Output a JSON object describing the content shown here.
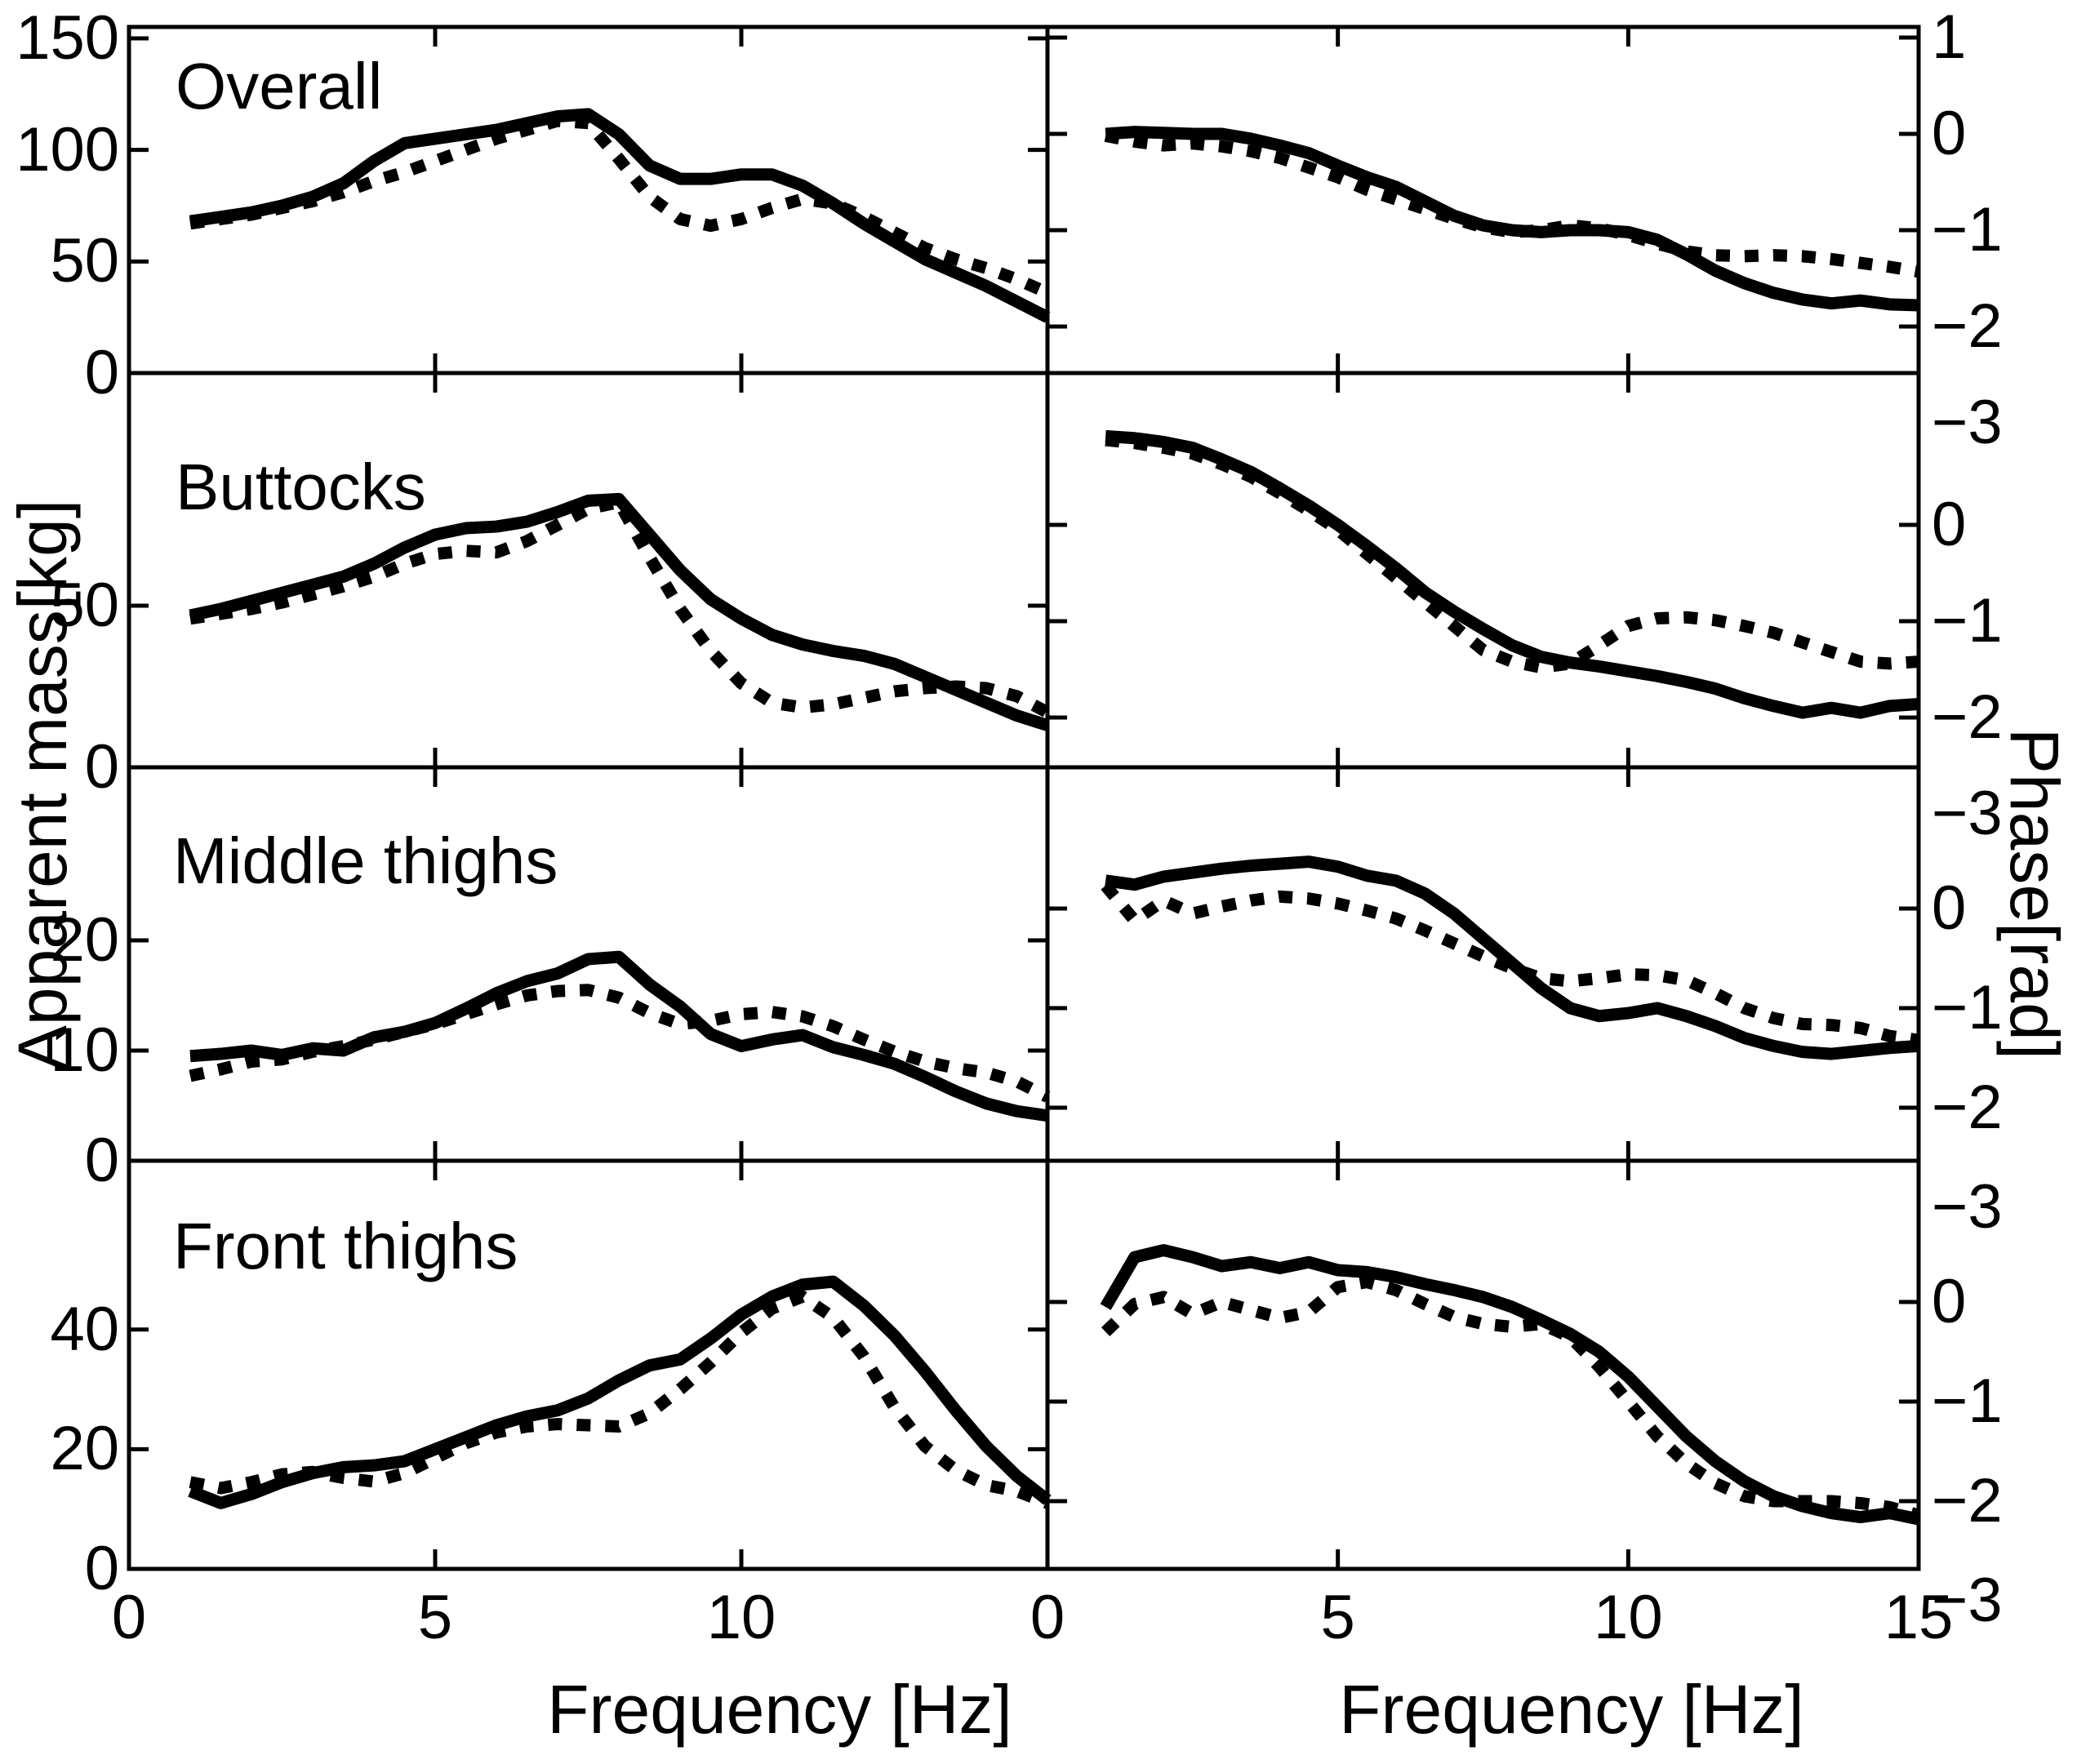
{
  "figure": {
    "left_axis_title": "Apparent mass[kg]",
    "right_axis_title": "Phase[rad]",
    "bottom_axis_title_left": "Frequency [Hz]",
    "bottom_axis_title_right": "Frequency [Hz]",
    "row_titles": [
      "Overall",
      "Buttocks",
      "Middle thighs",
      "Front thighs"
    ],
    "line_color": "#000000",
    "background_color": "#ffffff"
  },
  "chart_data": [
    {
      "key": "overall-am",
      "type": "line",
      "title": "Overall",
      "xlabel": "Frequency [Hz]",
      "ylabel": "Apparent mass[kg]",
      "xlim": [
        0,
        15
      ],
      "ylim": [
        0,
        155.1
      ],
      "x_ticks": [
        5,
        10
      ],
      "x_axis_labels": [
        0,
        5,
        10
      ],
      "y_ticks": [
        0,
        50,
        100,
        150
      ],
      "x": [
        1,
        1.5,
        2,
        2.5,
        3,
        3.5,
        4,
        4.5,
        5,
        5.5,
        6,
        6.5,
        7,
        7.5,
        8,
        8.5,
        9,
        9.5,
        10,
        10.5,
        11,
        11.5,
        12,
        12.5,
        13,
        13.5,
        14,
        14.5,
        15
      ],
      "series": [
        {
          "name": "solid",
          "style": "solid",
          "values": [
            68,
            70,
            72,
            75,
            79,
            85,
            95,
            103,
            105,
            107,
            109,
            112,
            115,
            116,
            107,
            93,
            87,
            87,
            89,
            89,
            84,
            76,
            67,
            59,
            51,
            45,
            39,
            32,
            25
          ]
        },
        {
          "name": "dotted",
          "style": "dotted",
          "values": [
            67,
            69,
            71,
            74,
            77,
            81,
            86,
            90,
            95,
            100,
            105,
            109,
            113,
            112,
            96,
            79,
            69,
            66,
            69,
            74,
            78,
            76,
            70,
            63,
            56,
            51,
            47,
            42,
            36
          ]
        }
      ]
    },
    {
      "key": "overall-phase",
      "type": "line",
      "title": "",
      "xlabel": "Frequency [Hz]",
      "ylabel": "Phase[rad]",
      "xlim": [
        0,
        15
      ],
      "ylim": [
        -2.483,
        1.11
      ],
      "x_ticks": [
        5,
        10
      ],
      "x_axis_labels": [
        0,
        5,
        10,
        15
      ],
      "y_ticks": [
        1,
        0,
        -1,
        -2,
        -3
      ],
      "x": [
        1,
        1.5,
        2,
        2.5,
        3,
        3.5,
        4,
        4.5,
        5,
        5.5,
        6,
        6.5,
        7,
        7.5,
        8,
        8.5,
        9,
        9.5,
        10,
        10.5,
        11,
        11.5,
        12,
        12.5,
        13,
        13.5,
        14,
        14.5,
        15
      ],
      "series": [
        {
          "name": "solid",
          "style": "solid",
          "values": [
            0.0,
            0.02,
            0.01,
            0.0,
            0.0,
            -0.05,
            -0.12,
            -0.2,
            -0.33,
            -0.45,
            -0.55,
            -0.7,
            -0.85,
            -0.95,
            -1.0,
            -1.02,
            -1.0,
            -1.0,
            -1.02,
            -1.1,
            -1.25,
            -1.42,
            -1.55,
            -1.65,
            -1.72,
            -1.76,
            -1.73,
            -1.77,
            -1.78
          ]
        },
        {
          "name": "dotted",
          "style": "dotted",
          "values": [
            -0.02,
            -0.08,
            -0.12,
            -0.1,
            -0.13,
            -0.18,
            -0.25,
            -0.35,
            -0.45,
            -0.58,
            -0.68,
            -0.78,
            -0.88,
            -0.97,
            -1.02,
            -1.0,
            -0.95,
            -0.98,
            -1.05,
            -1.14,
            -1.22,
            -1.26,
            -1.27,
            -1.26,
            -1.27,
            -1.3,
            -1.34,
            -1.38,
            -1.43
          ]
        }
      ]
    },
    {
      "key": "buttocks-am",
      "type": "line",
      "title": "Buttocks",
      "xlabel": "Frequency [Hz]",
      "ylabel": "Apparent mass[kg]",
      "xlim": [
        0,
        15
      ],
      "ylim": [
        0,
        122
      ],
      "x_ticks": [
        5,
        10
      ],
      "x_axis_labels": [
        0,
        5,
        10
      ],
      "y_ticks": [
        0,
        50
      ],
      "x": [
        1,
        1.5,
        2,
        2.5,
        3,
        3.5,
        4,
        4.5,
        5,
        5.5,
        6,
        6.5,
        7,
        7.5,
        8,
        8.5,
        9,
        9.5,
        10,
        10.5,
        11,
        11.5,
        12,
        12.5,
        13,
        13.5,
        14,
        14.5,
        15
      ],
      "series": [
        {
          "name": "solid",
          "style": "solid",
          "values": [
            47,
            49,
            51.5,
            54,
            56.5,
            59,
            63,
            68,
            72,
            74,
            74.5,
            76,
            79,
            82.5,
            83,
            72,
            61,
            52,
            46,
            41,
            38,
            36,
            34.5,
            32,
            28,
            24,
            20,
            16,
            13
          ]
        },
        {
          "name": "dotted",
          "style": "dotted",
          "values": [
            46,
            47.5,
            49,
            51,
            53.5,
            56,
            59,
            63,
            66,
            67,
            66.5,
            70,
            75,
            80,
            82,
            65,
            49,
            36,
            26,
            20,
            18.5,
            19.5,
            21.5,
            23.5,
            24.5,
            25,
            24.5,
            22,
            17
          ]
        }
      ]
    },
    {
      "key": "buttocks-phase",
      "type": "line",
      "title": "",
      "xlabel": "Frequency [Hz]",
      "ylabel": "Phase[rad]",
      "xlim": [
        0,
        15
      ],
      "ylim": [
        -2.517,
        1.576
      ],
      "x_ticks": [
        5,
        10
      ],
      "x_axis_labels": [
        0,
        5,
        10,
        15
      ],
      "y_ticks": [
        0,
        -1,
        -2,
        -3
      ],
      "x": [
        1,
        1.5,
        2,
        2.5,
        3,
        3.5,
        4,
        4.5,
        5,
        5.5,
        6,
        6.5,
        7,
        7.5,
        8,
        8.5,
        9,
        9.5,
        10,
        10.5,
        11,
        11.5,
        12,
        12.5,
        13,
        13.5,
        14,
        14.5,
        15
      ],
      "series": [
        {
          "name": "solid",
          "style": "solid",
          "values": [
            0.92,
            0.9,
            0.86,
            0.8,
            0.68,
            0.55,
            0.38,
            0.2,
            0.0,
            -0.22,
            -0.45,
            -0.7,
            -0.9,
            -1.08,
            -1.25,
            -1.37,
            -1.43,
            -1.47,
            -1.52,
            -1.57,
            -1.63,
            -1.7,
            -1.8,
            -1.88,
            -1.95,
            -1.9,
            -1.95,
            -1.88,
            -1.86
          ]
        },
        {
          "name": "dotted",
          "style": "dotted",
          "values": [
            0.88,
            0.85,
            0.8,
            0.74,
            0.63,
            0.5,
            0.33,
            0.15,
            -0.05,
            -0.3,
            -0.55,
            -0.8,
            -1.05,
            -1.3,
            -1.42,
            -1.48,
            -1.44,
            -1.25,
            -1.05,
            -0.97,
            -0.96,
            -0.99,
            -1.05,
            -1.12,
            -1.22,
            -1.32,
            -1.42,
            -1.44,
            -1.42
          ]
        }
      ]
    },
    {
      "key": "middle-thighs-am",
      "type": "line",
      "title": "Middle thighs",
      "xlabel": "Frequency [Hz]",
      "ylabel": "Apparent mass[kg]",
      "xlim": [
        0,
        15
      ],
      "ylim": [
        0,
        35.7
      ],
      "x_ticks": [
        5,
        10
      ],
      "x_axis_labels": [
        0,
        5,
        10
      ],
      "y_ticks": [
        0,
        10,
        20
      ],
      "x": [
        1,
        1.5,
        2,
        2.5,
        3,
        3.5,
        4,
        4.5,
        5,
        5.5,
        6,
        6.5,
        7,
        7.5,
        8,
        8.5,
        9,
        9.5,
        10,
        10.5,
        11,
        11.5,
        12,
        12.5,
        13,
        13.5,
        14,
        14.5,
        15
      ],
      "series": [
        {
          "name": "solid",
          "style": "solid",
          "values": [
            9.5,
            9.7,
            10.0,
            9.6,
            10.2,
            10.0,
            11.2,
            11.7,
            12.5,
            13.8,
            15.2,
            16.3,
            17.0,
            18.3,
            18.5,
            16.0,
            14.0,
            11.5,
            10.4,
            11.0,
            11.4,
            10.3,
            9.6,
            8.8,
            7.6,
            6.3,
            5.2,
            4.5,
            4.1
          ]
        },
        {
          "name": "dotted",
          "style": "dotted",
          "values": [
            7.7,
            8.3,
            9.0,
            9.2,
            9.9,
            10.4,
            11.0,
            11.7,
            12.4,
            13.3,
            14.2,
            15.0,
            15.4,
            15.5,
            14.8,
            13.4,
            12.4,
            12.7,
            13.3,
            13.5,
            13.1,
            12.2,
            11.0,
            9.9,
            9.0,
            8.4,
            8.0,
            7.2,
            5.8
          ]
        }
      ]
    },
    {
      "key": "middle-thighs-phase",
      "type": "line",
      "title": "",
      "xlabel": "Frequency [Hz]",
      "ylabel": "Phase[rad]",
      "xlim": [
        0,
        15
      ],
      "ylim": [
        -2.533,
        1.418
      ],
      "x_ticks": [
        5,
        10
      ],
      "x_axis_labels": [
        0,
        5,
        10,
        15
      ],
      "y_ticks": [
        0,
        -1,
        -2,
        -3
      ],
      "x": [
        1,
        1.5,
        2,
        2.5,
        3,
        3.5,
        4,
        4.5,
        5,
        5.5,
        6,
        6.5,
        7,
        7.5,
        8,
        8.5,
        9,
        9.5,
        10,
        10.5,
        11,
        11.5,
        12,
        12.5,
        13,
        13.5,
        14,
        14.5,
        15
      ],
      "series": [
        {
          "name": "solid",
          "style": "solid",
          "values": [
            0.28,
            0.24,
            0.32,
            0.36,
            0.4,
            0.43,
            0.45,
            0.47,
            0.42,
            0.33,
            0.28,
            0.15,
            -0.05,
            -0.3,
            -0.55,
            -0.8,
            -1.0,
            -1.08,
            -1.05,
            -1.0,
            -1.08,
            -1.18,
            -1.3,
            -1.38,
            -1.44,
            -1.46,
            -1.43,
            -1.4,
            -1.38
          ]
        },
        {
          "name": "dotted",
          "style": "dotted",
          "values": [
            0.23,
            -0.12,
            0.08,
            -0.05,
            0.02,
            0.08,
            0.12,
            0.1,
            0.05,
            -0.02,
            -0.1,
            -0.22,
            -0.35,
            -0.48,
            -0.6,
            -0.7,
            -0.73,
            -0.7,
            -0.66,
            -0.67,
            -0.72,
            -0.85,
            -1.0,
            -1.1,
            -1.16,
            -1.17,
            -1.2,
            -1.28,
            -1.32
          ]
        }
      ]
    },
    {
      "key": "front-thighs-am",
      "type": "line",
      "title": "Front thighs",
      "xlabel": "Frequency [Hz]",
      "ylabel": "Apparent mass[kg]",
      "xlim": [
        0,
        15
      ],
      "ylim": [
        0,
        68.2
      ],
      "x_ticks": [
        5,
        10
      ],
      "x_axis_labels": [
        0,
        5,
        10
      ],
      "y_ticks": [
        0,
        20,
        40
      ],
      "x": [
        1,
        1.5,
        2,
        2.5,
        3,
        3.5,
        4,
        4.5,
        5,
        5.5,
        6,
        6.5,
        7,
        7.5,
        8,
        8.5,
        9,
        9.5,
        10,
        10.5,
        11,
        11.5,
        12,
        12.5,
        13,
        13.5,
        14,
        14.5,
        15
      ],
      "series": [
        {
          "name": "solid",
          "style": "solid",
          "values": [
            13,
            11,
            12.5,
            14.5,
            16,
            17,
            17.3,
            18,
            20,
            22,
            24,
            25.5,
            26.5,
            28.5,
            31.5,
            34,
            35,
            38.5,
            42.5,
            45.5,
            47.5,
            48,
            44,
            39,
            33,
            26.5,
            20.5,
            15.5,
            11.5
          ]
        },
        {
          "name": "dotted",
          "style": "dotted",
          "values": [
            14.5,
            13.5,
            14.5,
            15.8,
            16.2,
            15.2,
            14.6,
            16,
            18.5,
            21,
            22.8,
            23.8,
            24.2,
            24,
            23.8,
            26,
            30,
            34.5,
            39.5,
            43.5,
            45.5,
            42,
            35.5,
            27,
            20.5,
            16.5,
            14,
            13,
            11
          ]
        }
      ]
    },
    {
      "key": "front-thighs-phase",
      "type": "line",
      "title": "",
      "xlabel": "Frequency [Hz]",
      "ylabel": "Phase[rad]",
      "xlim": [
        0,
        15
      ],
      "ylim": [
        -2.68,
        1.418
      ],
      "x_ticks": [
        5,
        10
      ],
      "x_axis_labels": [
        0,
        5,
        10,
        15
      ],
      "y_ticks": [
        0,
        -1,
        -2,
        -3
      ],
      "x": [
        1,
        1.5,
        2,
        2.5,
        3,
        3.5,
        4,
        4.5,
        5,
        5.5,
        6,
        6.5,
        7,
        7.5,
        8,
        8.5,
        9,
        9.5,
        10,
        10.5,
        11,
        11.5,
        12,
        12.5,
        13,
        13.5,
        14,
        14.5,
        15
      ],
      "series": [
        {
          "name": "solid",
          "style": "solid",
          "values": [
            -0.05,
            0.45,
            0.52,
            0.45,
            0.36,
            0.4,
            0.34,
            0.4,
            0.32,
            0.3,
            0.25,
            0.18,
            0.12,
            0.05,
            -0.05,
            -0.18,
            -0.32,
            -0.5,
            -0.75,
            -1.05,
            -1.35,
            -1.6,
            -1.8,
            -1.95,
            -2.05,
            -2.12,
            -2.16,
            -2.12,
            -2.18
          ]
        },
        {
          "name": "dotted",
          "style": "dotted",
          "values": [
            -0.3,
            -0.02,
            0.05,
            -0.12,
            0.0,
            -0.08,
            -0.16,
            -0.1,
            0.15,
            0.2,
            0.12,
            -0.02,
            -0.15,
            -0.22,
            -0.25,
            -0.22,
            -0.35,
            -0.65,
            -1.0,
            -1.35,
            -1.62,
            -1.82,
            -1.95,
            -2.0,
            -2.0,
            -2.0,
            -2.02,
            -2.06,
            -2.14
          ]
        }
      ]
    }
  ]
}
